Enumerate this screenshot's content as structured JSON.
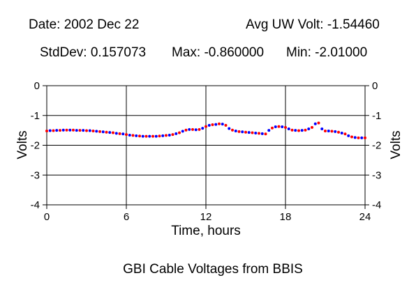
{
  "header": {
    "date": "Date: 2002 Dec 22",
    "avg": "Avg UW Volt: -1.54460",
    "stddev": "StdDev: 0.157073",
    "max": "Max: -0.860000",
    "min": "Min: -2.01000"
  },
  "chart_data": {
    "type": "scatter",
    "title": "GBI Cable Voltages from BBIS",
    "xlabel": "Time, hours",
    "ylabel": "Volts",
    "xlim": [
      0,
      24
    ],
    "ylim": [
      -4,
      0
    ],
    "xticks": [
      0,
      6,
      12,
      18,
      24
    ],
    "yticks": [
      0,
      -1,
      -2,
      -3,
      -4
    ],
    "xtick_labels": [
      "0",
      "6",
      "12",
      "18",
      "24"
    ],
    "ytick_labels": [
      "0",
      "-1",
      "-2",
      "-3",
      "-4"
    ],
    "grid": true,
    "colors": {
      "series_a": "#ff0000",
      "series_b": "#0000ff"
    },
    "series": [
      {
        "x": [
          0.0,
          0.5,
          1.0,
          1.5,
          2.0,
          2.5,
          3.0,
          3.5,
          4.0,
          4.5,
          5.0,
          5.5,
          6.0,
          6.5,
          7.0,
          7.5,
          8.0,
          8.5,
          9.0,
          9.5,
          10.0,
          10.5,
          11.0,
          11.5,
          12.0,
          12.5,
          13.0,
          13.5,
          14.0,
          14.5,
          15.0,
          15.5,
          16.0,
          16.5,
          17.0,
          17.5,
          18.0,
          18.5,
          19.0,
          19.5,
          20.0,
          20.5,
          21.0,
          21.5,
          22.0,
          22.5,
          23.0,
          23.5,
          24.0
        ],
        "values": [
          -1.52,
          -1.51,
          -1.5,
          -1.49,
          -1.49,
          -1.5,
          -1.51,
          -1.52,
          -1.54,
          -1.56,
          -1.58,
          -1.61,
          -1.64,
          -1.67,
          -1.69,
          -1.7,
          -1.7,
          -1.69,
          -1.67,
          -1.64,
          -1.58,
          -1.49,
          -1.47,
          -1.47,
          -1.37,
          -1.31,
          -1.28,
          -1.33,
          -1.49,
          -1.54,
          -1.56,
          -1.58,
          -1.6,
          -1.62,
          -1.42,
          -1.37,
          -1.4,
          -1.49,
          -1.51,
          -1.49,
          -1.4,
          -1.25,
          -1.52,
          -1.53,
          -1.56,
          -1.62,
          -1.72,
          -1.75,
          -1.75
        ]
      },
      {
        "x": [
          0.25,
          0.75,
          1.25,
          1.75,
          2.25,
          2.75,
          3.25,
          3.75,
          4.25,
          4.75,
          5.25,
          5.75,
          6.25,
          6.75,
          7.25,
          7.75,
          8.25,
          8.75,
          9.25,
          9.75,
          10.25,
          10.75,
          11.25,
          11.75,
          12.25,
          12.75,
          13.25,
          13.75,
          14.25,
          14.75,
          15.25,
          15.75,
          16.25,
          16.75,
          17.25,
          17.75,
          18.25,
          18.75,
          19.25,
          19.75,
          20.25,
          20.75,
          21.25,
          21.75,
          22.25,
          22.75,
          23.25,
          23.75
        ],
        "values": [
          -1.51,
          -1.5,
          -1.49,
          -1.49,
          -1.5,
          -1.5,
          -1.51,
          -1.53,
          -1.55,
          -1.57,
          -1.6,
          -1.62,
          -1.66,
          -1.68,
          -1.7,
          -1.7,
          -1.7,
          -1.68,
          -1.66,
          -1.61,
          -1.53,
          -1.47,
          -1.48,
          -1.43,
          -1.33,
          -1.3,
          -1.29,
          -1.44,
          -1.52,
          -1.55,
          -1.57,
          -1.59,
          -1.61,
          -1.5,
          -1.38,
          -1.38,
          -1.45,
          -1.5,
          -1.5,
          -1.45,
          -1.28,
          -1.45,
          -1.52,
          -1.54,
          -1.59,
          -1.68,
          -1.74,
          -1.75
        ]
      }
    ]
  }
}
